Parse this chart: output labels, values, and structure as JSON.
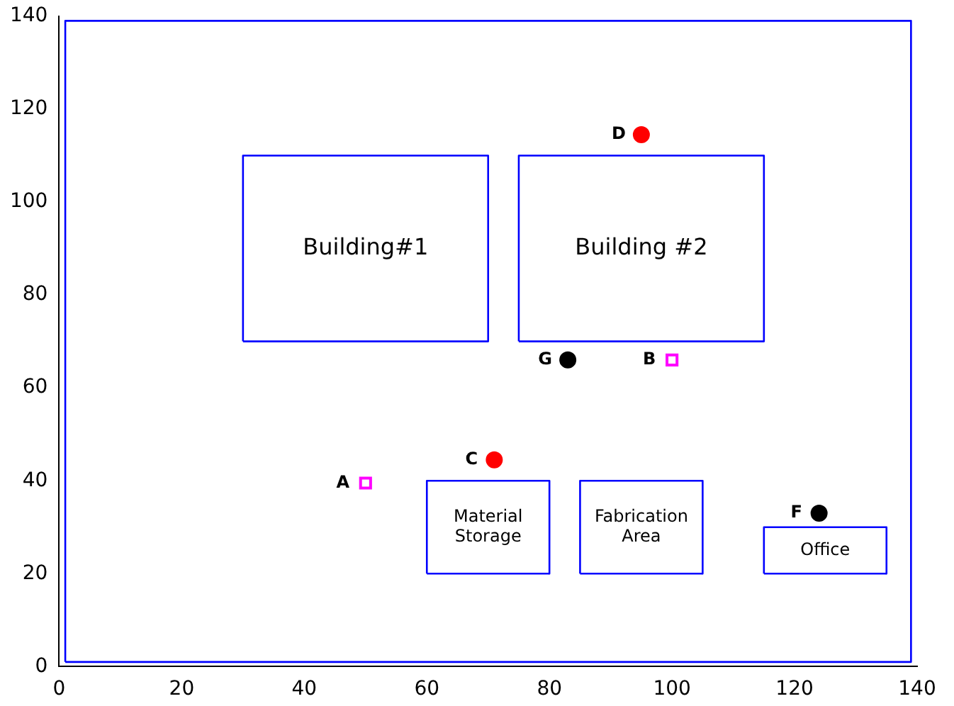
{
  "chart_data": {
    "type": "scatter",
    "xlim": [
      0,
      140
    ],
    "xticks": [
      0,
      20,
      40,
      60,
      80,
      100,
      120,
      140
    ],
    "ylim": [
      0,
      140
    ],
    "yticks": [
      0,
      20,
      40,
      60,
      80,
      100,
      120,
      140
    ],
    "grid": false,
    "legend": false,
    "series": [
      {
        "type": "line",
        "marker": "none",
        "color": "#0000ff",
        "x": [
          1,
          1,
          139,
          139
        ],
        "values": [
          1,
          139,
          139,
          1
        ]
      },
      {
        "type": "line",
        "marker": "none",
        "color": "#0000ff",
        "x": [
          1,
          139
        ],
        "values": [
          1,
          1
        ]
      },
      {
        "type": "line",
        "marker": "none",
        "color": "#0000ff",
        "x": [
          30,
          30,
          70,
          70
        ],
        "values": [
          70,
          110,
          110,
          70
        ]
      },
      {
        "type": "line",
        "marker": "none",
        "color": "#0000ff",
        "x": [
          30,
          70
        ],
        "values": [
          70,
          70
        ]
      },
      {
        "type": "line",
        "marker": "none",
        "color": "#0000ff",
        "x": [
          75,
          75,
          115,
          115
        ],
        "values": [
          70,
          110,
          110,
          70
        ]
      },
      {
        "type": "line",
        "marker": "none",
        "color": "#0000ff",
        "x": [
          75,
          115
        ],
        "values": [
          70,
          70
        ]
      },
      {
        "type": "line",
        "marker": "none",
        "color": "#0000ff",
        "x": [
          60,
          60,
          80,
          80
        ],
        "values": [
          20,
          40,
          40,
          20
        ]
      },
      {
        "type": "line",
        "marker": "none",
        "color": "#0000ff",
        "x": [
          60,
          80
        ],
        "values": [
          20,
          20
        ]
      },
      {
        "type": "line",
        "marker": "none",
        "color": "#0000ff",
        "x": [
          85,
          85,
          105,
          105
        ],
        "values": [
          20,
          40,
          40,
          20
        ]
      },
      {
        "type": "line",
        "marker": "none",
        "color": "#0000ff",
        "x": [
          85,
          105
        ],
        "values": [
          20,
          20
        ]
      },
      {
        "type": "line",
        "marker": "none",
        "color": "#0000ff",
        "x": [
          115,
          115,
          135,
          135
        ],
        "values": [
          20,
          30,
          30,
          20
        ]
      },
      {
        "type": "line",
        "marker": "none",
        "color": "#0000ff",
        "x": [
          115,
          135
        ],
        "values": [
          20,
          20
        ]
      },
      {
        "type": "scatter",
        "marker": "circle",
        "color": "#ff0000",
        "x": [
          71,
          95
        ],
        "values": [
          44.5,
          114.5
        ]
      },
      {
        "type": "scatter",
        "marker": "circle",
        "color": "#000000",
        "x": [
          83,
          124
        ],
        "values": [
          66,
          33
        ]
      },
      {
        "type": "scatter",
        "marker": "square",
        "color": "#ff00ff",
        "x": [
          50,
          100
        ],
        "values": [
          39.5,
          66
        ]
      }
    ],
    "annotations": [
      "Building#1",
      "Building #2",
      "Material\nStorage",
      "Fabrication\nArea",
      "Office",
      {
        "text": "A",
        "x": 50,
        "y": 39.5
      },
      {
        "text": "B",
        "x": 100,
        "y": 66
      },
      {
        "text": "C",
        "x": 71,
        "y": 44.5
      },
      {
        "text": "D",
        "x": 95,
        "y": 114.5
      },
      {
        "text": "F",
        "x": 124,
        "y": 33
      },
      {
        "text": "G",
        "x": 83,
        "y": 66
      }
    ]
  }
}
